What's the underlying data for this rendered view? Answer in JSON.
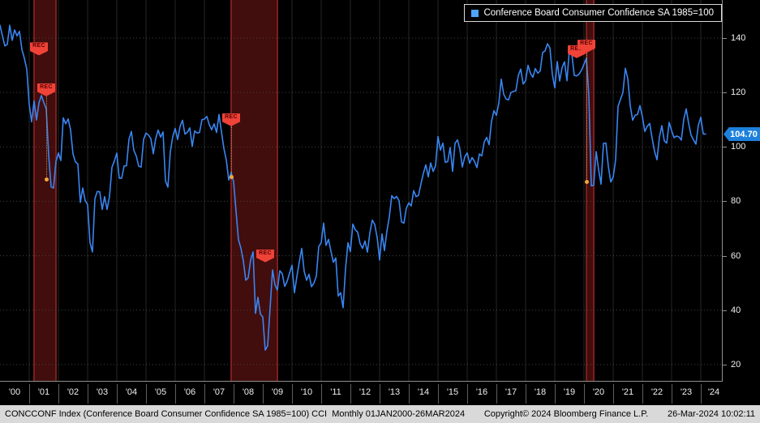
{
  "legend": {
    "label": "Conference Board Consumer Confidence SA 1985=100",
    "swatch_color": "#4da3ff"
  },
  "y_axis": {
    "last_value_label": "104.70"
  },
  "status_bar": {
    "left": "CONCCONF Index (Conference Board Consumer Confidence SA 1985=100) CCI  Monthly 01JAN2000-26MAR2024",
    "center": "Copyright© 2024 Bloomberg Finance L.P.",
    "right": "26-Mar-2024 10:02:11"
  },
  "chart_data": {
    "type": "line",
    "title": "Conference Board Consumer Confidence SA 1985=100",
    "frequency": "Monthly",
    "x_start": "2000-01",
    "x_end": "2024-03",
    "ylim": [
      14,
      154
    ],
    "y_ticks": [
      140,
      120,
      100,
      80,
      60,
      40,
      20
    ],
    "x_tick_labels": [
      "'00",
      "'01",
      "'02",
      "'03",
      "'04",
      "'05",
      "'06",
      "'07",
      "'08",
      "'09",
      "'10",
      "'11",
      "'12",
      "'13",
      "'14",
      "'15",
      "'16",
      "'17",
      "'18",
      "'19",
      "'20",
      "'21",
      "'22",
      "'23",
      "'24"
    ],
    "last": 104.7,
    "grid": true,
    "legend_position": "top-right",
    "series": [
      {
        "name": "Conference Board Consumer Confidence SA 1985=100",
        "color": "#3986f2",
        "values": [
          144.7,
          140.8,
          137.1,
          137.7,
          144.7,
          139.2,
          143.0,
          140.8,
          142.5,
          135.8,
          132.6,
          128.6,
          115.7,
          109.2,
          116.9,
          109.9,
          116.1,
          118.9,
          116.3,
          114.0,
          97.0,
          85.3,
          84.9,
          94.6,
          97.8,
          95.0,
          110.7,
          108.5,
          110.3,
          106.3,
          97.4,
          94.5,
          93.7,
          79.6,
          84.9,
          80.3,
          78.8,
          64.8,
          61.4,
          81.0,
          83.6,
          83.5,
          77.0,
          81.7,
          77.0,
          81.7,
          92.5,
          94.8,
          97.7,
          88.5,
          88.5,
          93.0,
          93.1,
          102.8,
          105.7,
          98.7,
          96.7,
          92.9,
          92.6,
          102.7,
          105.1,
          104.4,
          103.0,
          97.5,
          103.1,
          106.2,
          103.6,
          105.5,
          87.5,
          85.2,
          98.3,
          103.8,
          106.8,
          102.7,
          107.5,
          109.8,
          104.7,
          105.4,
          107.0,
          100.2,
          105.9,
          105.1,
          105.3,
          110.0,
          110.2,
          111.2,
          108.2,
          106.3,
          108.5,
          105.3,
          111.9,
          105.6,
          99.5,
          95.2,
          87.8,
          90.6,
          87.3,
          76.4,
          65.9,
          62.8,
          58.1,
          51.0,
          51.9,
          58.5,
          61.4,
          38.8,
          44.7,
          38.6,
          37.4,
          25.3,
          26.9,
          40.8,
          54.8,
          49.3,
          47.4,
          54.5,
          53.4,
          48.7,
          50.6,
          53.6,
          56.5,
          46.4,
          52.3,
          57.7,
          62.7,
          54.3,
          51.0,
          53.2,
          48.6,
          49.9,
          52.5,
          63.4,
          64.8,
          72.0,
          63.8,
          66.0,
          61.7,
          57.6,
          59.2,
          45.2,
          46.4,
          40.9,
          55.2,
          64.8,
          61.5,
          71.6,
          69.5,
          68.7,
          64.4,
          62.7,
          65.4,
          61.3,
          68.4,
          73.1,
          71.5,
          66.7,
          58.4,
          68.0,
          61.9,
          69.0,
          74.3,
          82.1,
          81.0,
          81.8,
          80.2,
          72.4,
          72.0,
          77.5,
          79.4,
          78.3,
          83.9,
          81.7,
          82.2,
          86.4,
          90.3,
          93.4,
          89.0,
          94.1,
          91.0,
          93.1,
          103.8,
          98.8,
          101.4,
          94.3,
          94.6,
          99.8,
          91.0,
          101.3,
          102.6,
          99.1,
          92.6,
          96.3,
          97.8,
          94.0,
          96.1,
          94.7,
          92.4,
          97.4,
          96.7,
          101.8,
          103.5,
          100.8,
          109.4,
          113.3,
          111.6,
          116.1,
          124.9,
          119.4,
          117.6,
          117.3,
          120.0,
          120.4,
          120.6,
          126.2,
          128.6,
          123.1,
          124.3,
          130.0,
          127.0,
          125.6,
          128.8,
          127.1,
          127.9,
          134.7,
          135.3,
          137.9,
          136.4,
          126.6,
          121.7,
          131.4,
          124.2,
          129.2,
          131.3,
          124.3,
          135.8,
          134.2,
          126.3,
          126.1,
          126.8,
          128.2,
          130.4,
          132.6,
          118.8,
          85.7,
          85.9,
          98.3,
          91.7,
          86.3,
          101.3,
          101.4,
          92.9,
          87.1,
          88.9,
          95.2,
          114.9,
          117.5,
          120.0,
          128.9,
          125.1,
          115.2,
          109.8,
          111.6,
          111.9,
          115.2,
          111.1,
          105.7,
          107.6,
          108.6,
          103.2,
          98.4,
          95.3,
          103.6,
          107.8,
          102.2,
          101.4,
          109.0,
          106.0,
          103.4,
          104.0,
          103.7,
          102.5,
          110.1,
          114.0,
          108.7,
          104.3,
          102.6,
          101.0,
          108.0,
          110.9,
          104.8,
          104.7
        ]
      }
    ],
    "recessions": [
      {
        "start_month": 14,
        "end_month": 22
      },
      {
        "start_month": 95,
        "end_month": 113
      },
      {
        "start_month": 241,
        "end_month": 243
      }
    ],
    "markers": [
      {
        "label": "REC",
        "month": 16,
        "value": 136
      },
      {
        "label": "REC",
        "month": 19,
        "value": 121,
        "drop_to": 88
      },
      {
        "label": "REC",
        "month": 95,
        "value": 110,
        "drop_to": 89
      },
      {
        "label": "REC",
        "month": 109,
        "value": 60
      },
      {
        "label": "REC",
        "month": 237,
        "value": 135
      },
      {
        "label": "REC",
        "month": 241,
        "value": 137,
        "drop_to": 87
      }
    ]
  }
}
